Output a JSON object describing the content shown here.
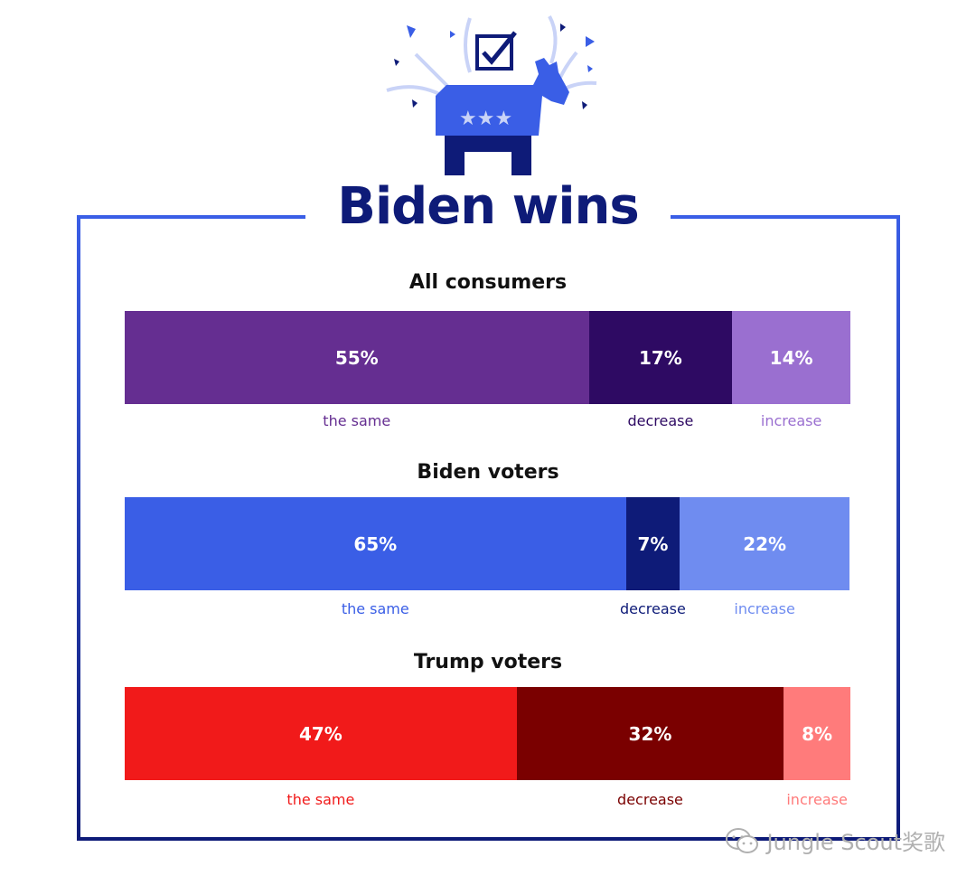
{
  "chart_data": {
    "type": "bar",
    "orientation": "horizontal-stacked",
    "title": "Biden wins",
    "categories": [
      "the same",
      "decrease",
      "increase"
    ],
    "groups": [
      {
        "name": "All consumers",
        "values": [
          55,
          17,
          14
        ],
        "labels": [
          "55%",
          "17%",
          "14%"
        ],
        "colors": [
          "#652e91",
          "#2e0a63",
          "#9a6fd0"
        ]
      },
      {
        "name": "Biden voters",
        "values": [
          65,
          7,
          22
        ],
        "labels": [
          "65%",
          "7%",
          "22%"
        ],
        "colors": [
          "#3a5ee6",
          "#0e1b78",
          "#6f8cf0"
        ]
      },
      {
        "name": "Trump voters",
        "values": [
          47,
          32,
          8
        ],
        "labels": [
          "47%",
          "32%",
          "8%"
        ],
        "colors": [
          "#f11a1a",
          "#7a0000",
          "#ff7b7b"
        ]
      }
    ]
  },
  "watermark": {
    "text": "Jungle Scout奖歌",
    "icon": "wechat-icon"
  },
  "illustration": {
    "icon": "democrat-donkey-ballot-icon"
  },
  "colors": {
    "frame_top": "#3a5ee6",
    "frame_bottom": "#0e1b78",
    "title": "#0e1b78"
  }
}
